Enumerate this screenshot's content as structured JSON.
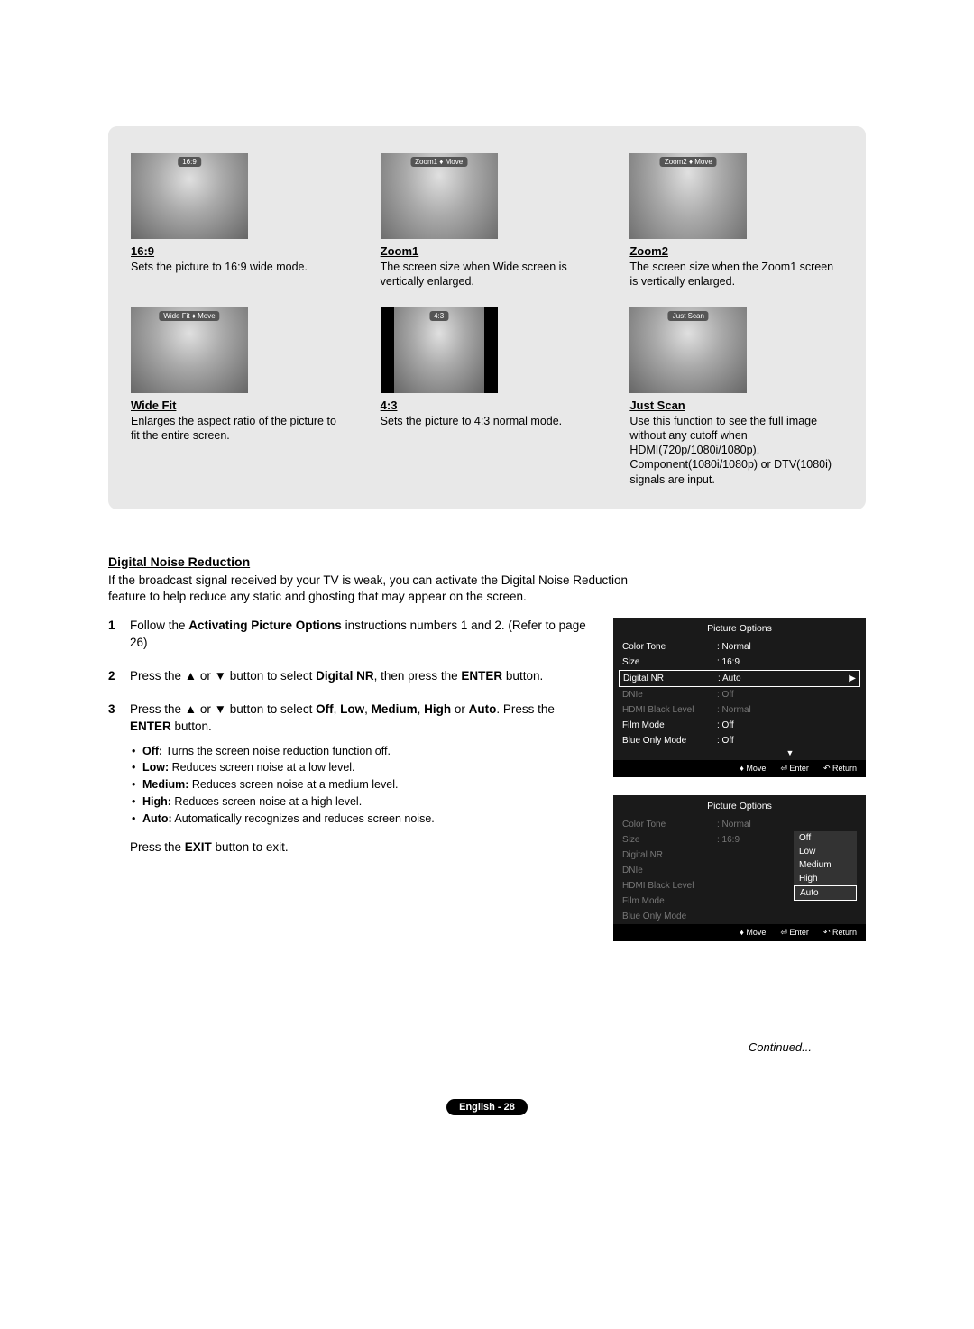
{
  "sizes": [
    {
      "label": "16:9",
      "title": "16:9",
      "desc": "Sets the picture to 16:9 wide mode.",
      "thumbClass": "thumb-full"
    },
    {
      "label": "Zoom1 ♦ Move",
      "title": "Zoom1",
      "desc": "The screen size when Wide screen is vertically enlarged.",
      "thumbClass": "thumb-z1"
    },
    {
      "label": "Zoom2 ♦ Move",
      "title": "Zoom2",
      "desc": "The screen size when the Zoom1 screen is vertically enlarged.",
      "thumbClass": "thumb-z2"
    },
    {
      "label": "Wide Fit ♦ Move",
      "title": "Wide Fit",
      "desc": "Enlarges the aspect ratio of the picture to fit the entire screen.",
      "thumbClass": "thumb-wf"
    },
    {
      "label": "4:3",
      "title": "4:3",
      "desc": "Sets the picture to 4:3 normal mode.",
      "thumbClass": "thumb-43"
    },
    {
      "label": "Just Scan",
      "title": "Just Scan",
      "desc": "Use this function to see the full image without any cutoff when HDMI(720p/1080i/1080p), Component(1080i/1080p) or DTV(1080i) signals are input.",
      "thumbClass": "thumb-full"
    }
  ],
  "dnr": {
    "heading": "Digital Noise Reduction",
    "intro": "If the broadcast signal received by your TV is weak, you can activate the Digital Noise Reduction feature to help reduce any static and ghosting that may appear on the screen.",
    "step1_pre": "Follow the ",
    "step1_bold": "Activating Picture Options",
    "step1_post": " instructions numbers 1 and 2. (Refer to page 26)",
    "step2_pre": "Press the ▲ or ▼ button to select ",
    "step2_b1": "Digital NR",
    "step2_mid": ", then press the ",
    "step2_b2": "ENTER",
    "step2_post": " button.",
    "step3_pre": "Press the ▲ or ▼ button to select ",
    "step3_b1": "Off",
    "step3_c1": ", ",
    "step3_b2": "Low",
    "step3_c2": ", ",
    "step3_b3": "Medium",
    "step3_c3": ", ",
    "step3_b4": "High",
    "step3_c4": " or ",
    "step3_b5": "Auto",
    "step3_post": ". Press the ",
    "step3_b6": "ENTER",
    "step3_post2": " button.",
    "bullets": [
      {
        "b": "Off:",
        "t": " Turns the screen noise reduction function off."
      },
      {
        "b": "Low:",
        "t": " Reduces screen noise at a low level."
      },
      {
        "b": "Medium:",
        "t": " Reduces screen noise at a medium level."
      },
      {
        "b": "High:",
        "t": " Reduces screen noise at a high level."
      },
      {
        "b": "Auto:",
        "t": " Automatically recognizes and reduces screen noise."
      }
    ],
    "exit_pre": "Press the ",
    "exit_b": "EXIT",
    "exit_post": " button to exit."
  },
  "osd": {
    "title": "Picture Options",
    "rows1": [
      {
        "label": "Color Tone",
        "value": ": Normal",
        "dim": false
      },
      {
        "label": "Size",
        "value": ": 16:9",
        "dim": false
      }
    ],
    "sel1": {
      "label": "Digital NR",
      "value": ": Auto"
    },
    "rows1b": [
      {
        "label": "DNIe",
        "value": ": Off",
        "dim": true
      },
      {
        "label": "HDMI Black Level",
        "value": ": Normal",
        "dim": true
      },
      {
        "label": "Film Mode",
        "value": ": Off",
        "dim": false
      },
      {
        "label": "Blue Only Mode",
        "value": ": Off",
        "dim": false
      }
    ],
    "rows2": [
      {
        "label": "Color Tone",
        "value": ": Normal",
        "dim": true
      },
      {
        "label": "Size",
        "value": ": 16:9",
        "dim": true
      },
      {
        "label": "Digital NR",
        "value": "",
        "dim": true
      },
      {
        "label": "DNIe",
        "value": "",
        "dim": true
      },
      {
        "label": "HDMI Black Level",
        "value": "",
        "dim": true
      },
      {
        "label": "Film Mode",
        "value": "",
        "dim": true
      },
      {
        "label": "Blue Only Mode",
        "value": "",
        "dim": true
      }
    ],
    "dropdown": [
      "Off",
      "Low",
      "Medium",
      "High",
      "Auto"
    ],
    "dd_selected": "Auto",
    "footer": {
      "move": "♦ Move",
      "enter": "⏎ Enter",
      "return": "↶ Return"
    }
  },
  "continued": "Continued...",
  "pagefoot": "English - 28"
}
